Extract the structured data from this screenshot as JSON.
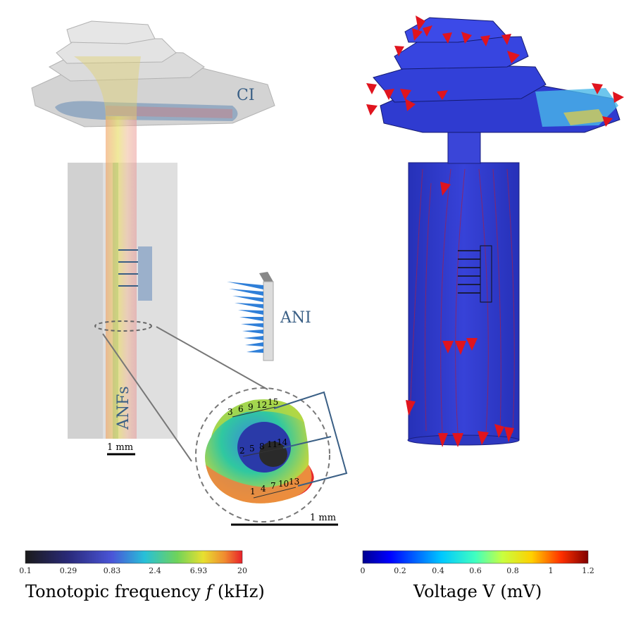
{
  "labels": {
    "ci": "CI",
    "ani": "ANI",
    "anfs": "ANFs",
    "scale_left": "1 mm",
    "scale_inset": "1 mm"
  },
  "electrode_numbers": {
    "top_row": [
      "3",
      "6",
      "9",
      "12",
      "15"
    ],
    "middle_row": [
      "2",
      "5",
      "8",
      "11",
      "14"
    ],
    "bottom_row": [
      "1",
      "4",
      "7",
      "10",
      "13"
    ]
  },
  "colorbar_left": {
    "title_prefix": "Tonotopic frequency ",
    "title_symbol": "f",
    "title_suffix": " (kHz)",
    "ticks": [
      "0.1",
      "0.29",
      "0.83",
      "2.4",
      "6.93",
      "20"
    ]
  },
  "colorbar_right": {
    "title": "Voltage V (mV)",
    "ticks": [
      "0",
      "0.2",
      "0.4",
      "0.6",
      "0.8",
      "1",
      "1.2"
    ]
  },
  "colors": {
    "ani_blue": "#3a5f85",
    "volume_blue": "#2b35c8",
    "arrow_red": "#e0141e"
  }
}
